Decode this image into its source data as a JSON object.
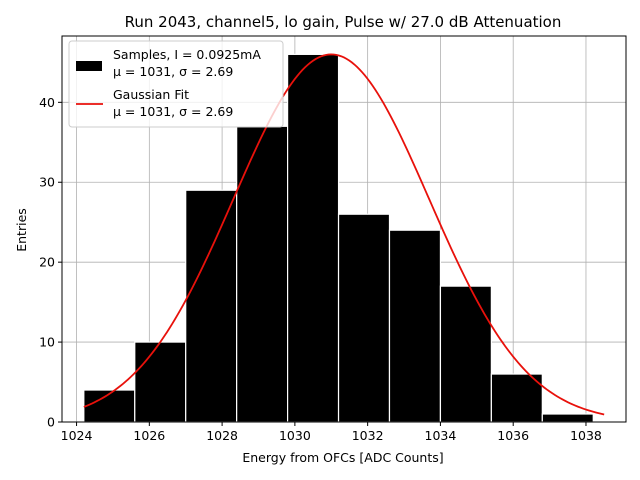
{
  "chart_data": {
    "type": "bar",
    "title": "Run 2043, channel5, lo gain, Pulse w/ 27.0 dB Attenuation",
    "xlabel": "Energy from OFCs [ADC Counts]",
    "ylabel": "Entries",
    "xlim": [
      1023.6,
      1039.1
    ],
    "ylim": [
      0,
      48.3
    ],
    "xticks": [
      1024,
      1026,
      1028,
      1030,
      1032,
      1034,
      1036,
      1038
    ],
    "yticks": [
      0,
      10,
      20,
      30,
      40
    ],
    "grid": true,
    "legend_position": "upper-left",
    "histogram": {
      "bin_edges": [
        1024.2,
        1025.6,
        1027.0,
        1028.4,
        1029.8,
        1031.2,
        1032.6,
        1034.0,
        1035.4,
        1036.8,
        1038.2
      ],
      "counts": [
        4,
        10,
        29,
        37,
        46,
        26,
        24,
        17,
        6,
        1
      ],
      "color": "#000000",
      "edgecolor": "#ffffff"
    },
    "fit": {
      "type": "gaussian",
      "amplitude": 46,
      "mu": 1031.0,
      "sigma": 2.69,
      "x_range": [
        1024.2,
        1038.5
      ],
      "color": "#e8110b"
    },
    "legend": [
      {
        "series": "samples",
        "line1": "Samples, I = 0.0925mA",
        "line2": "μ = 1031, σ = 2.69"
      },
      {
        "series": "fit",
        "line1": "Gaussian Fit",
        "line2": "μ = 1031, σ = 2.69"
      }
    ]
  }
}
